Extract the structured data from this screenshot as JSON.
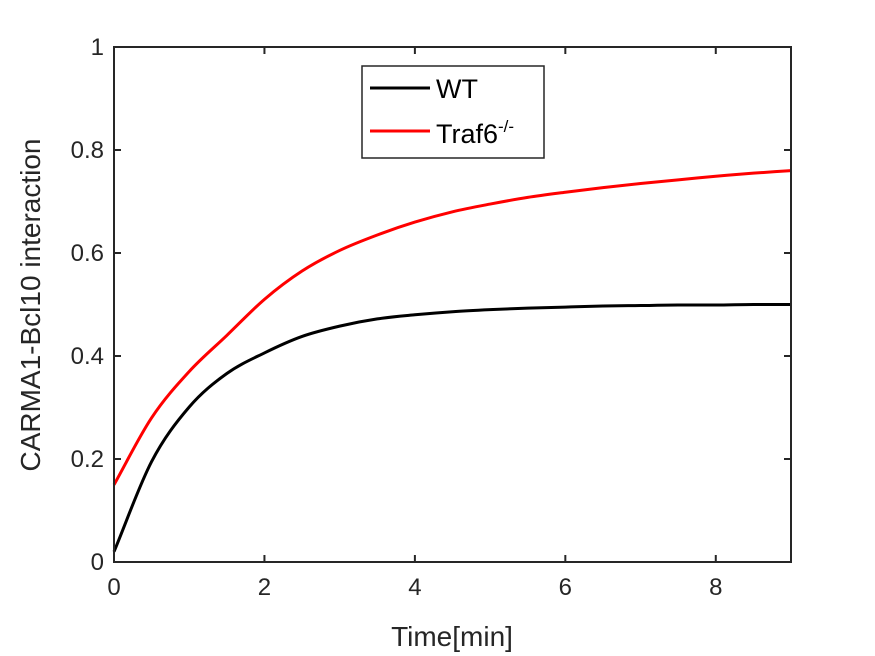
{
  "chart_data": {
    "type": "line",
    "xlabel": "Time[min]",
    "ylabel": "CARMA1-Bcl10 interaction",
    "xlim": [
      0,
      9
    ],
    "ylim": [
      0,
      1
    ],
    "xticks": [
      0,
      2,
      4,
      6,
      8
    ],
    "yticks": [
      0,
      0.2,
      0.4,
      0.6,
      0.8,
      1
    ],
    "xtick_labels": [
      "0",
      "2",
      "4",
      "6",
      "8"
    ],
    "ytick_labels": [
      "0",
      "0.2",
      "0.4",
      "0.6",
      "0.8",
      "1"
    ],
    "grid": false,
    "legend": {
      "placement": "top-center",
      "entries": [
        {
          "text": "WT",
          "superscript": ""
        },
        {
          "text": "Traf6",
          "superscript": "-/-"
        }
      ]
    },
    "x": [
      0,
      0.5,
      1,
      1.5,
      2,
      2.5,
      3,
      3.5,
      4,
      4.5,
      5,
      5.5,
      6,
      6.5,
      7,
      7.5,
      8,
      8.5,
      9
    ],
    "series": [
      {
        "name": "WT",
        "color": "#000000",
        "values": [
          0.02,
          0.195,
          0.301,
          0.366,
          0.406,
          0.438,
          0.458,
          0.472,
          0.48,
          0.486,
          0.49,
          0.493,
          0.495,
          0.497,
          0.498,
          0.499,
          0.499,
          0.5,
          0.5
        ]
      },
      {
        "name": "Traf6-/-",
        "color": "#ff0000",
        "values": [
          0.15,
          0.28,
          0.37,
          0.44,
          0.51,
          0.565,
          0.605,
          0.635,
          0.66,
          0.68,
          0.695,
          0.708,
          0.718,
          0.727,
          0.735,
          0.742,
          0.749,
          0.755,
          0.76
        ]
      }
    ]
  }
}
